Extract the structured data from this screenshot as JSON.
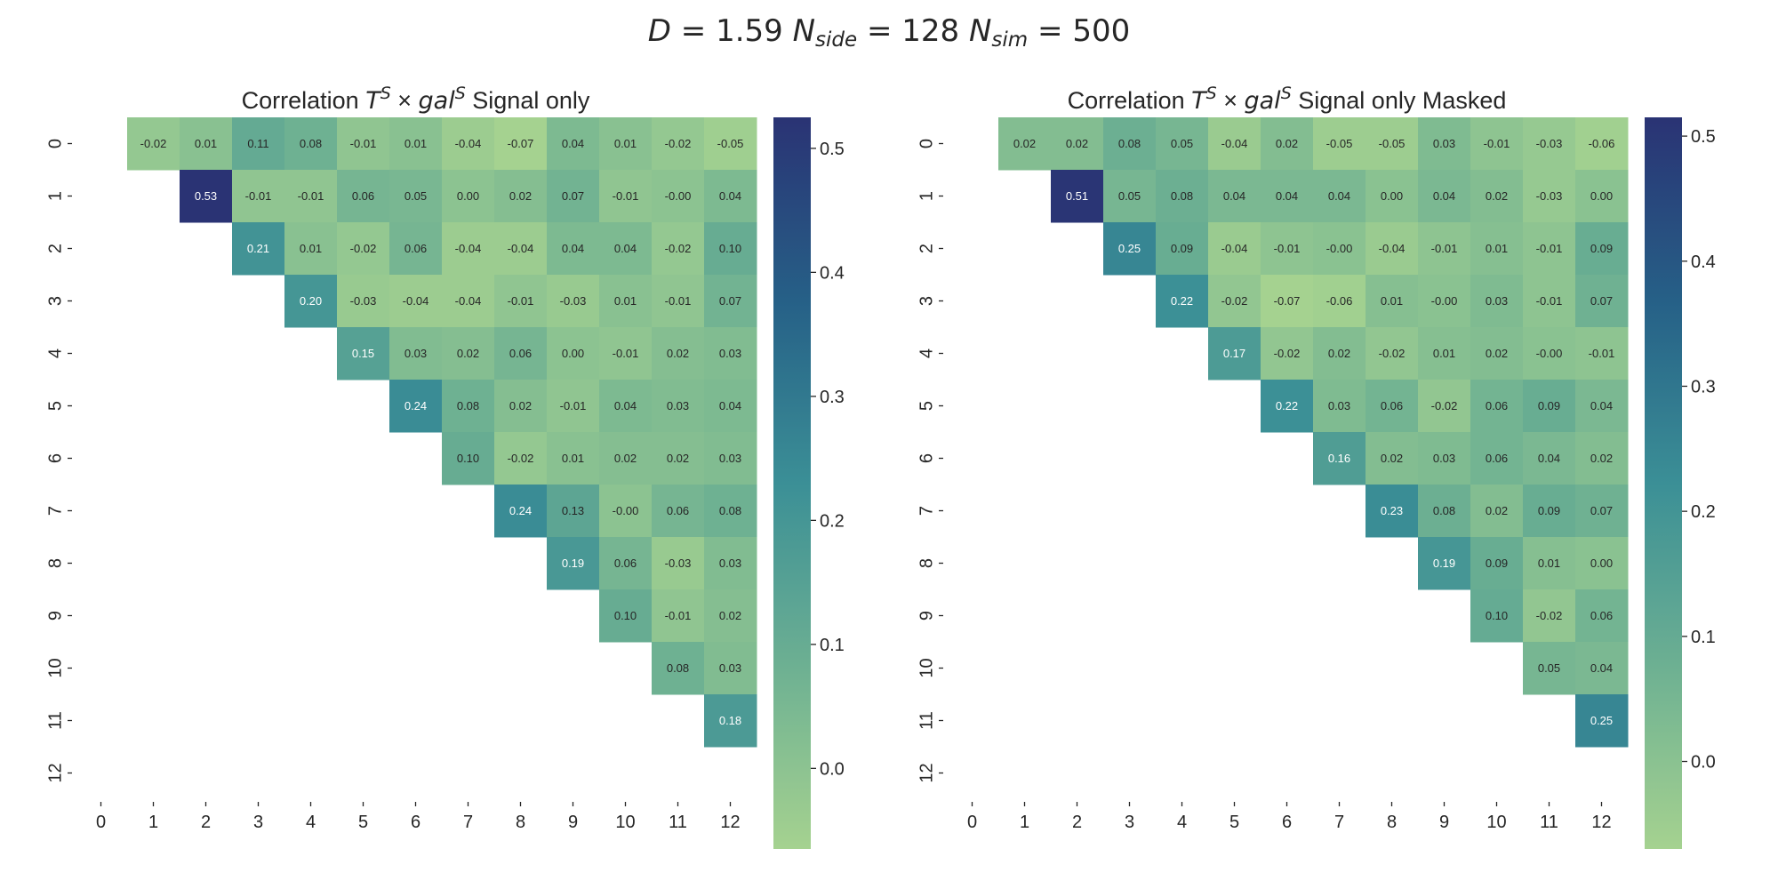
{
  "suptitle": {
    "text": "D = 1.59  N_side = 128  N_sim = 500",
    "D": "1.59",
    "N_side": "128",
    "N_sim": "500"
  },
  "colors": {
    "colormap": "crest",
    "low": "#a5d290",
    "mid": "#3b8f96",
    "high": "#2a3374"
  },
  "chart_data": [
    {
      "type": "heatmap",
      "title": "Correlation T^S × gal^S Signal only",
      "title_parts": {
        "prefix": "Correlation ",
        "base1": "T",
        "sup1": "S",
        "times": " × ",
        "base2": "gal",
        "sup2": "S",
        "suffix": " Signal only"
      },
      "rows": [
        0,
        1,
        2,
        3,
        4,
        5,
        6,
        7,
        8,
        9,
        10,
        11,
        12
      ],
      "cols": [
        0,
        1,
        2,
        3,
        4,
        5,
        6,
        7,
        8,
        9,
        10,
        11,
        12
      ],
      "mask": "upper-triangle (strict, j > i)",
      "colorbar": {
        "vmin": -0.065,
        "vmax": 0.525,
        "ticks": [
          "0.0",
          "0.1",
          "0.2",
          "0.3",
          "0.4",
          "0.5"
        ]
      },
      "values": [
        [
          null,
          -0.02,
          0.01,
          0.11,
          0.08,
          -0.01,
          0.01,
          -0.04,
          -0.07,
          0.04,
          0.01,
          -0.02,
          -0.05
        ],
        [
          null,
          null,
          0.53,
          -0.01,
          -0.01,
          0.06,
          0.05,
          0.0,
          0.02,
          0.07,
          -0.01,
          -0.0,
          0.04
        ],
        [
          null,
          null,
          null,
          0.21,
          0.01,
          -0.02,
          0.06,
          -0.04,
          -0.04,
          0.04,
          0.04,
          -0.02,
          0.1
        ],
        [
          null,
          null,
          null,
          null,
          0.2,
          -0.03,
          -0.04,
          -0.04,
          -0.01,
          -0.03,
          0.01,
          -0.01,
          0.07
        ],
        [
          null,
          null,
          null,
          null,
          null,
          0.15,
          0.03,
          0.02,
          0.06,
          0.0,
          -0.01,
          0.02,
          0.03
        ],
        [
          null,
          null,
          null,
          null,
          null,
          null,
          0.24,
          0.08,
          0.02,
          -0.01,
          0.04,
          0.03,
          0.04
        ],
        [
          null,
          null,
          null,
          null,
          null,
          null,
          null,
          0.1,
          -0.02,
          0.01,
          0.02,
          0.02,
          0.03
        ],
        [
          null,
          null,
          null,
          null,
          null,
          null,
          null,
          null,
          0.24,
          0.13,
          -0.0,
          0.06,
          0.08
        ],
        [
          null,
          null,
          null,
          null,
          null,
          null,
          null,
          null,
          null,
          0.19,
          0.06,
          -0.03,
          0.03
        ],
        [
          null,
          null,
          null,
          null,
          null,
          null,
          null,
          null,
          null,
          null,
          0.1,
          -0.01,
          0.02
        ],
        [
          null,
          null,
          null,
          null,
          null,
          null,
          null,
          null,
          null,
          null,
          null,
          0.08,
          0.03
        ],
        [
          null,
          null,
          null,
          null,
          null,
          null,
          null,
          null,
          null,
          null,
          null,
          null,
          0.18
        ],
        [
          null,
          null,
          null,
          null,
          null,
          null,
          null,
          null,
          null,
          null,
          null,
          null,
          null
        ]
      ],
      "labels": [
        [
          null,
          "-0.02",
          "0.01",
          "0.11",
          "0.08",
          "-0.01",
          "0.01",
          "-0.04",
          "-0.07",
          "0.04",
          "0.01",
          "-0.02",
          "-0.05"
        ],
        [
          null,
          null,
          "0.53",
          "-0.01",
          "-0.01",
          "0.06",
          "0.05",
          "0.00",
          "0.02",
          "0.07",
          "-0.01",
          "-0.00",
          "0.04"
        ],
        [
          null,
          null,
          null,
          "0.21",
          "0.01",
          "-0.02",
          "0.06",
          "-0.04",
          "-0.04",
          "0.04",
          "0.04",
          "-0.02",
          "0.10"
        ],
        [
          null,
          null,
          null,
          null,
          "0.20",
          "-0.03",
          "-0.04",
          "-0.04",
          "-0.01",
          "-0.03",
          "0.01",
          "-0.01",
          "0.07"
        ],
        [
          null,
          null,
          null,
          null,
          null,
          "0.15",
          "0.03",
          "0.02",
          "0.06",
          "0.00",
          "-0.01",
          "0.02",
          "0.03"
        ],
        [
          null,
          null,
          null,
          null,
          null,
          null,
          "0.24",
          "0.08",
          "0.02",
          "-0.01",
          "0.04",
          "0.03",
          "0.04"
        ],
        [
          null,
          null,
          null,
          null,
          null,
          null,
          null,
          "0.10",
          "-0.02",
          "0.01",
          "0.02",
          "0.02",
          "0.03"
        ],
        [
          null,
          null,
          null,
          null,
          null,
          null,
          null,
          null,
          "0.24",
          "0.13",
          "-0.00",
          "0.06",
          "0.08"
        ],
        [
          null,
          null,
          null,
          null,
          null,
          null,
          null,
          null,
          null,
          "0.19",
          "0.06",
          "-0.03",
          "0.03"
        ],
        [
          null,
          null,
          null,
          null,
          null,
          null,
          null,
          null,
          null,
          null,
          "0.10",
          "-0.01",
          "0.02"
        ],
        [
          null,
          null,
          null,
          null,
          null,
          null,
          null,
          null,
          null,
          null,
          null,
          "0.08",
          "0.03"
        ],
        [
          null,
          null,
          null,
          null,
          null,
          null,
          null,
          null,
          null,
          null,
          null,
          null,
          "0.18"
        ],
        [
          null,
          null,
          null,
          null,
          null,
          null,
          null,
          null,
          null,
          null,
          null,
          null,
          null
        ]
      ]
    },
    {
      "type": "heatmap",
      "title": "Correlation T^S × gal^S Signal only Masked",
      "title_parts": {
        "prefix": "Correlation ",
        "base1": "T",
        "sup1": "S",
        "times": " × ",
        "base2": "gal",
        "sup2": "S",
        "suffix": " Signal only Masked"
      },
      "rows": [
        0,
        1,
        2,
        3,
        4,
        5,
        6,
        7,
        8,
        9,
        10,
        11,
        12
      ],
      "cols": [
        0,
        1,
        2,
        3,
        4,
        5,
        6,
        7,
        8,
        9,
        10,
        11,
        12
      ],
      "mask": "upper-triangle (strict, j > i)",
      "colorbar": {
        "vmin": -0.07,
        "vmax": 0.515,
        "ticks": [
          "0.0",
          "0.1",
          "0.2",
          "0.3",
          "0.4",
          "0.5"
        ]
      },
      "values": [
        [
          null,
          0.02,
          0.02,
          0.08,
          0.05,
          -0.04,
          0.02,
          -0.05,
          -0.05,
          0.03,
          -0.01,
          -0.03,
          -0.06
        ],
        [
          null,
          null,
          0.51,
          0.05,
          0.08,
          0.04,
          0.04,
          0.04,
          0.0,
          0.04,
          0.02,
          -0.03,
          0.0
        ],
        [
          null,
          null,
          null,
          0.25,
          0.09,
          -0.04,
          -0.01,
          -0.0,
          -0.04,
          -0.01,
          0.01,
          -0.01,
          0.09
        ],
        [
          null,
          null,
          null,
          null,
          0.22,
          -0.02,
          -0.07,
          -0.06,
          0.01,
          -0.0,
          0.03,
          -0.01,
          0.07
        ],
        [
          null,
          null,
          null,
          null,
          null,
          0.17,
          -0.02,
          0.02,
          -0.02,
          0.01,
          0.02,
          -0.0,
          -0.01
        ],
        [
          null,
          null,
          null,
          null,
          null,
          null,
          0.22,
          0.03,
          0.06,
          -0.02,
          0.06,
          0.09,
          0.04
        ],
        [
          null,
          null,
          null,
          null,
          null,
          null,
          null,
          0.16,
          0.02,
          0.03,
          0.06,
          0.04,
          0.02
        ],
        [
          null,
          null,
          null,
          null,
          null,
          null,
          null,
          null,
          0.23,
          0.08,
          0.02,
          0.09,
          0.07
        ],
        [
          null,
          null,
          null,
          null,
          null,
          null,
          null,
          null,
          null,
          0.19,
          0.09,
          0.01,
          0.0
        ],
        [
          null,
          null,
          null,
          null,
          null,
          null,
          null,
          null,
          null,
          null,
          0.1,
          -0.02,
          0.06
        ],
        [
          null,
          null,
          null,
          null,
          null,
          null,
          null,
          null,
          null,
          null,
          null,
          0.05,
          0.04
        ],
        [
          null,
          null,
          null,
          null,
          null,
          null,
          null,
          null,
          null,
          null,
          null,
          null,
          0.25
        ],
        [
          null,
          null,
          null,
          null,
          null,
          null,
          null,
          null,
          null,
          null,
          null,
          null,
          null
        ]
      ],
      "labels": [
        [
          null,
          "0.02",
          "0.02",
          "0.08",
          "0.05",
          "-0.04",
          "0.02",
          "-0.05",
          "-0.05",
          "0.03",
          "-0.01",
          "-0.03",
          "-0.06"
        ],
        [
          null,
          null,
          "0.51",
          "0.05",
          "0.08",
          "0.04",
          "0.04",
          "0.04",
          "0.00",
          "0.04",
          "0.02",
          "-0.03",
          "0.00"
        ],
        [
          null,
          null,
          null,
          "0.25",
          "0.09",
          "-0.04",
          "-0.01",
          "-0.00",
          "-0.04",
          "-0.01",
          "0.01",
          "-0.01",
          "0.09"
        ],
        [
          null,
          null,
          null,
          null,
          "0.22",
          "-0.02",
          "-0.07",
          "-0.06",
          "0.01",
          "-0.00",
          "0.03",
          "-0.01",
          "0.07"
        ],
        [
          null,
          null,
          null,
          null,
          null,
          "0.17",
          "-0.02",
          "0.02",
          "-0.02",
          "0.01",
          "0.02",
          "-0.00",
          "-0.01"
        ],
        [
          null,
          null,
          null,
          null,
          null,
          null,
          "0.22",
          "0.03",
          "0.06",
          "-0.02",
          "0.06",
          "0.09",
          "0.04"
        ],
        [
          null,
          null,
          null,
          null,
          null,
          null,
          null,
          "0.16",
          "0.02",
          "0.03",
          "0.06",
          "0.04",
          "0.02"
        ],
        [
          null,
          null,
          null,
          null,
          null,
          null,
          null,
          null,
          "0.23",
          "0.08",
          "0.02",
          "0.09",
          "0.07"
        ],
        [
          null,
          null,
          null,
          null,
          null,
          null,
          null,
          null,
          null,
          "0.19",
          "0.09",
          "0.01",
          "0.00"
        ],
        [
          null,
          null,
          null,
          null,
          null,
          null,
          null,
          null,
          null,
          null,
          "0.10",
          "-0.02",
          "0.06"
        ],
        [
          null,
          null,
          null,
          null,
          null,
          null,
          null,
          null,
          null,
          null,
          null,
          "0.05",
          "0.04"
        ],
        [
          null,
          null,
          null,
          null,
          null,
          null,
          null,
          null,
          null,
          null,
          null,
          null,
          "0.25"
        ],
        [
          null,
          null,
          null,
          null,
          null,
          null,
          null,
          null,
          null,
          null,
          null,
          null,
          null
        ]
      ]
    }
  ]
}
